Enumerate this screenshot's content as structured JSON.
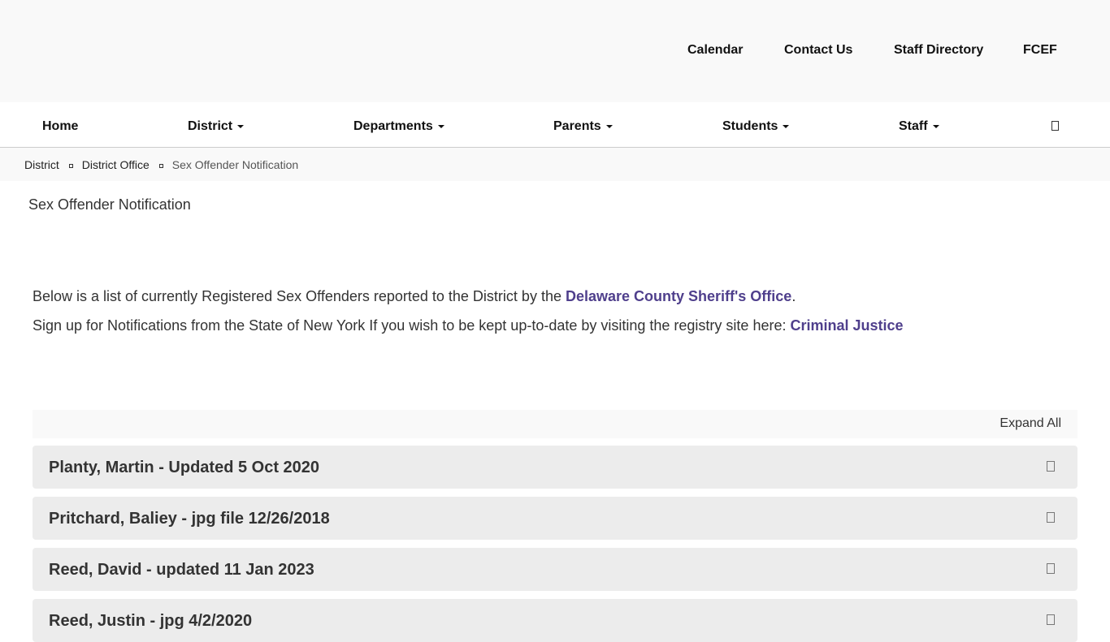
{
  "utility_nav": [
    "Calendar",
    "Contact Us",
    "Staff Directory",
    "FCEF"
  ],
  "main_nav": [
    {
      "label": "Home"
    },
    {
      "label": "District"
    },
    {
      "label": "Departments"
    },
    {
      "label": "Parents"
    },
    {
      "label": "Students"
    },
    {
      "label": "Staff"
    }
  ],
  "search_icon": "search-icon",
  "breadcrumb": [
    "District",
    "District Office",
    "Sex Offender Notification"
  ],
  "page_title": "Sex Offender Notification",
  "intro": {
    "p1_text": "Below is a list of currently Registered Sex Offenders reported to the District by the ",
    "p1_link": "Delaware County Sheriff's Office",
    "p1_end": ".",
    "p2_text": "Sign up for Notifications from the State of New York If you wish to be kept up-to-date by visiting the registry site here: ",
    "p2_link": "Criminal Justice"
  },
  "expand_all": "Expand All",
  "accordion": [
    "Planty, Martin - Updated 5 Oct 2020",
    "Pritchard, Baliey - jpg file 12/26/2018",
    "Reed, David - updated 11 Jan 2023",
    "Reed, Justin - jpg 4/2/2020"
  ],
  "colors": {
    "link": "#4f3f8c",
    "accordion_bg": "#ececec"
  }
}
